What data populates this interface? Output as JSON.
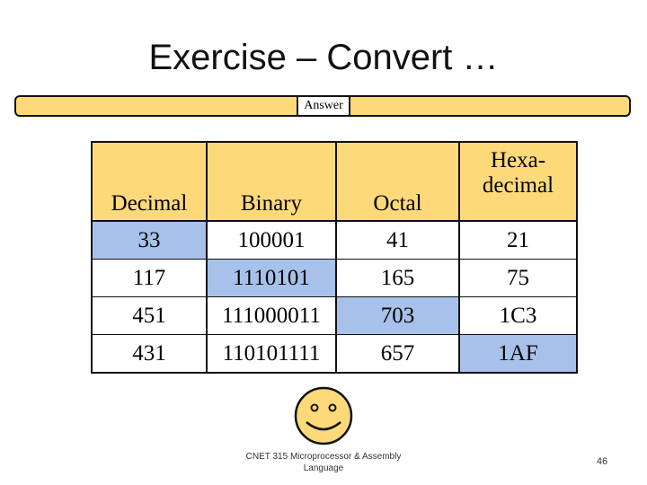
{
  "slide": {
    "title": "Exercise – Convert …",
    "answer_label": "Answer",
    "footer": "CNET 315 Microprocessor & Assembly Language",
    "page_number": "46"
  },
  "table": {
    "headers": [
      "Decimal",
      "Binary",
      "Octal",
      "Hexa-decimal"
    ],
    "hex_header_lines": [
      "Hexa-",
      "decimal"
    ],
    "rows": [
      [
        "33",
        "100001",
        "41",
        "21"
      ],
      [
        "117",
        "1110101",
        "165",
        "75"
      ],
      [
        "451",
        "111000011",
        "703",
        "1C3"
      ],
      [
        "431",
        "110101111",
        "657",
        "1AF"
      ]
    ],
    "highlighted_cells": [
      [
        0,
        0
      ],
      [
        1,
        1
      ],
      [
        2,
        2
      ],
      [
        3,
        3
      ]
    ]
  },
  "colors": {
    "header_fill": "#fed97a",
    "highlight_fill": "#a7c1ea",
    "smiley_fill": "#fed97a"
  },
  "icons": {
    "smiley": "smiley-face-icon"
  }
}
